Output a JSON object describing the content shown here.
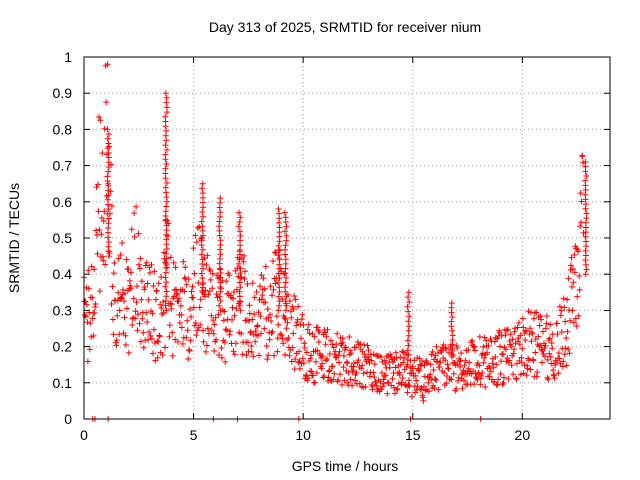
{
  "chart_data": {
    "type": "scatter",
    "title": "Day 313 of 2025, SRMTID for receiver nium",
    "xlabel": "GPS time / hours",
    "ylabel": "SRMTID / TECUs",
    "xlim": [
      0,
      24
    ],
    "ylim": [
      0,
      1
    ],
    "grid": true,
    "marker": "+",
    "color": "#ff0000",
    "xticks": [
      0,
      5,
      10,
      15,
      20
    ],
    "xtick_labels": [
      "0",
      "5",
      "10",
      "15",
      "20"
    ],
    "yticks": [
      0,
      0.1,
      0.2,
      0.3,
      0.4,
      0.5,
      0.6,
      0.7,
      0.8,
      0.9,
      1
    ],
    "ytick_labels": [
      "0",
      "0.1",
      "0.2",
      "0.3",
      "0.4",
      "0.5",
      "0.6",
      "0.7",
      "0.8",
      "0.9",
      "1"
    ],
    "envelope": [
      [
        0.0,
        0.3
      ],
      [
        0.3,
        0.28
      ],
      [
        0.5,
        0.36
      ],
      [
        0.7,
        0.62
      ],
      [
        0.9,
        0.68
      ],
      [
        1.1,
        0.72
      ],
      [
        1.3,
        0.4
      ],
      [
        1.5,
        0.3
      ],
      [
        1.8,
        0.35
      ],
      [
        2.0,
        0.3
      ],
      [
        2.3,
        0.45
      ],
      [
        2.6,
        0.3
      ],
      [
        3.0,
        0.34
      ],
      [
        3.3,
        0.26
      ],
      [
        3.6,
        0.3
      ],
      [
        3.8,
        0.42
      ],
      [
        4.0,
        0.3
      ],
      [
        4.4,
        0.32
      ],
      [
        4.8,
        0.28
      ],
      [
        5.2,
        0.4
      ],
      [
        5.5,
        0.32
      ],
      [
        6.0,
        0.3
      ],
      [
        6.5,
        0.28
      ],
      [
        7.0,
        0.33
      ],
      [
        7.5,
        0.3
      ],
      [
        8.0,
        0.28
      ],
      [
        8.5,
        0.3
      ],
      [
        9.0,
        0.35
      ],
      [
        9.5,
        0.25
      ],
      [
        10.0,
        0.2
      ],
      [
        10.5,
        0.18
      ],
      [
        11.0,
        0.18
      ],
      [
        11.5,
        0.17
      ],
      [
        12.0,
        0.16
      ],
      [
        12.5,
        0.15
      ],
      [
        13.0,
        0.14
      ],
      [
        13.5,
        0.13
      ],
      [
        14.0,
        0.12
      ],
      [
        14.5,
        0.13
      ],
      [
        15.0,
        0.12
      ],
      [
        15.5,
        0.1
      ],
      [
        16.0,
        0.14
      ],
      [
        16.5,
        0.15
      ],
      [
        17.0,
        0.14
      ],
      [
        17.5,
        0.15
      ],
      [
        18.0,
        0.16
      ],
      [
        18.5,
        0.16
      ],
      [
        19.0,
        0.17
      ],
      [
        19.5,
        0.18
      ],
      [
        20.0,
        0.2
      ],
      [
        20.5,
        0.21
      ],
      [
        21.0,
        0.2
      ],
      [
        21.5,
        0.19
      ],
      [
        22.0,
        0.25
      ],
      [
        22.3,
        0.38
      ],
      [
        22.6,
        0.45
      ],
      [
        22.8,
        0.55
      ]
    ],
    "spikes": [
      {
        "x": 1.1,
        "ymin": 0.45,
        "ymax": 0.8
      },
      {
        "x": 3.75,
        "ymin": 0.3,
        "ymax": 0.9
      },
      {
        "x": 5.4,
        "ymin": 0.35,
        "ymax": 0.65
      },
      {
        "x": 6.2,
        "ymin": 0.3,
        "ymax": 0.61
      },
      {
        "x": 7.1,
        "ymin": 0.3,
        "ymax": 0.57
      },
      {
        "x": 8.9,
        "ymin": 0.3,
        "ymax": 0.58
      },
      {
        "x": 9.2,
        "ymin": 0.3,
        "ymax": 0.57
      },
      {
        "x": 14.8,
        "ymin": 0.15,
        "ymax": 0.35
      },
      {
        "x": 16.8,
        "ymin": 0.18,
        "ymax": 0.32
      },
      {
        "x": 22.9,
        "ymin": 0.4,
        "ymax": 0.71
      }
    ],
    "zero_points": [
      0.4,
      0.5,
      1.1,
      5.9,
      7.0,
      9.8,
      14.9,
      18.1
    ]
  }
}
